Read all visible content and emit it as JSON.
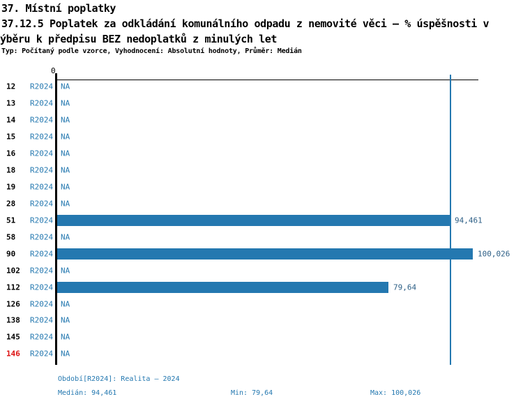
{
  "title": {
    "line1": "37. Místní poplatky",
    "line2": "37.12.5 Poplatek za odkládání komunálního odpadu z nemovité věci – % úspěšnosti v",
    "line3": "ýběru k předpisu BEZ nedoplatků z minulých let",
    "meta": "Typ: Počítaný podle vzorce, Vyhodnocení: Absolutní hodnoty, Průměr: Medián"
  },
  "chart_data": {
    "type": "bar",
    "orientation": "horizontal",
    "title": "37.12.5 Poplatek za odkládání komunálního odpadu z nemovité věci – % úspěšnosti výběru k předpisu BEZ nedoplatků z minulých let",
    "xlabel": "",
    "ylabel": "",
    "xlim": [
      0,
      101.2
    ],
    "origin_tick_label": "0",
    "grid": false,
    "series_name": "R2024",
    "categories": [
      "12",
      "13",
      "14",
      "15",
      "16",
      "18",
      "19",
      "28",
      "51",
      "58",
      "90",
      "102",
      "112",
      "126",
      "138",
      "145",
      "146"
    ],
    "rows": [
      {
        "category": "12",
        "period": "R2024",
        "value": null,
        "display": "NA",
        "highlight": false
      },
      {
        "category": "13",
        "period": "R2024",
        "value": null,
        "display": "NA",
        "highlight": false
      },
      {
        "category": "14",
        "period": "R2024",
        "value": null,
        "display": "NA",
        "highlight": false
      },
      {
        "category": "15",
        "period": "R2024",
        "value": null,
        "display": "NA",
        "highlight": false
      },
      {
        "category": "16",
        "period": "R2024",
        "value": null,
        "display": "NA",
        "highlight": false
      },
      {
        "category": "18",
        "period": "R2024",
        "value": null,
        "display": "NA",
        "highlight": false
      },
      {
        "category": "19",
        "period": "R2024",
        "value": null,
        "display": "NA",
        "highlight": false
      },
      {
        "category": "28",
        "period": "R2024",
        "value": null,
        "display": "NA",
        "highlight": false
      },
      {
        "category": "51",
        "period": "R2024",
        "value": 94.461,
        "display": "94,461",
        "highlight": false
      },
      {
        "category": "58",
        "period": "R2024",
        "value": null,
        "display": "NA",
        "highlight": false
      },
      {
        "category": "90",
        "period": "R2024",
        "value": 100.026,
        "display": "100,026",
        "highlight": false
      },
      {
        "category": "102",
        "period": "R2024",
        "value": null,
        "display": "NA",
        "highlight": false
      },
      {
        "category": "112",
        "period": "R2024",
        "value": 79.64,
        "display": "79,64",
        "highlight": false
      },
      {
        "category": "126",
        "period": "R2024",
        "value": null,
        "display": "NA",
        "highlight": false
      },
      {
        "category": "138",
        "period": "R2024",
        "value": null,
        "display": "NA",
        "highlight": false
      },
      {
        "category": "145",
        "period": "R2024",
        "value": null,
        "display": "NA",
        "highlight": false
      },
      {
        "category": "146",
        "period": "R2024",
        "value": null,
        "display": "NA",
        "highlight": true
      }
    ],
    "median_line_value": 94.461,
    "stats": {
      "median": 94.461,
      "min": 79.64,
      "max": 100.026
    },
    "legend_position": "none"
  },
  "footer": {
    "period": "Období[R2024]: Realita – 2024",
    "median": "Medián: 94,461",
    "min": "Min: 79,64",
    "max": "Max: 100,026"
  },
  "colors": {
    "bar_blue": "#2478b0",
    "text_blue": "#2478b0",
    "value_label_blue": "#2d5f86",
    "highlight_red": "#dd1111",
    "axis_black": "#000000",
    "background": "#ffffff"
  }
}
